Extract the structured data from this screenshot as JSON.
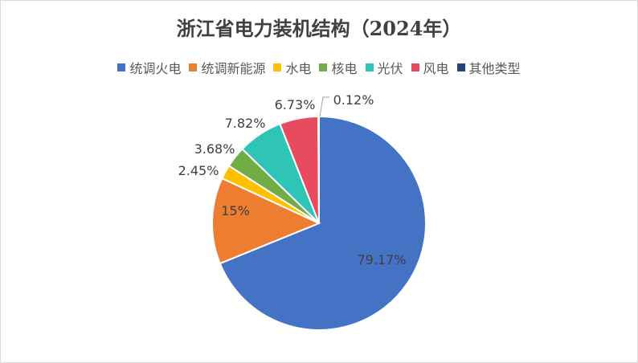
{
  "chart_data": {
    "type": "pie",
    "title": "浙江省电力装机结构（2024年）",
    "legend_position": "top",
    "categories": [
      "统调火电",
      "统调新能源",
      "水电",
      "核电",
      "光伏",
      "风电",
      "其他类型"
    ],
    "values": [
      79.17,
      15,
      2.45,
      3.68,
      7.82,
      6.73,
      0.12
    ],
    "data_labels": [
      "79.17%",
      "15%",
      "2.45%",
      "3.68%",
      "7.82%",
      "6.73%",
      "0.12%"
    ],
    "colors": [
      "#4472C4",
      "#ED7D31",
      "#FFC000",
      "#70AD47",
      "#2EC4B6",
      "#E84A5F",
      "#264478"
    ]
  }
}
